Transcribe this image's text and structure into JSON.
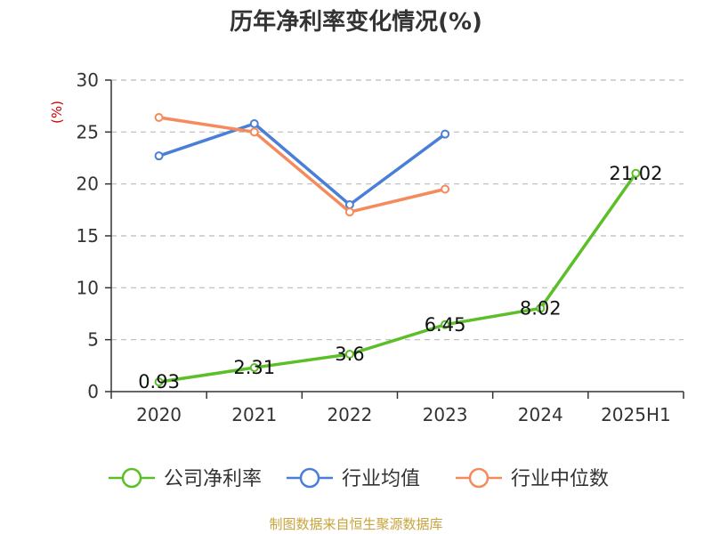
{
  "title": "历年净利率变化情况(%)",
  "source": "制图数据来自恒生聚源数据库",
  "chart_data": {
    "type": "line",
    "title": "历年净利率变化情况(%)",
    "ylabel": "(%)",
    "xlabel": "",
    "categories": [
      "2020",
      "2021",
      "2022",
      "2023",
      "2024",
      "2025H1"
    ],
    "ylim": [
      0,
      30
    ],
    "yticks": [
      0,
      5,
      10,
      15,
      20,
      25,
      30
    ],
    "grid": true,
    "legend_position": "bottom",
    "series": [
      {
        "name": "公司净利率",
        "color": "#5cbf2a",
        "values": [
          0.93,
          2.31,
          3.6,
          6.45,
          8.02,
          21.02
        ],
        "labels": [
          "0.93",
          "2.31",
          "3.6",
          "6.45",
          "8.02",
          "21.02"
        ]
      },
      {
        "name": "行业均值",
        "color": "#4a7fd8",
        "values": [
          22.7,
          25.8,
          18.0,
          24.8,
          null,
          null
        ]
      },
      {
        "name": "行业中位数",
        "color": "#f58b5c",
        "values": [
          26.4,
          25.0,
          17.3,
          19.5,
          null,
          null
        ]
      }
    ]
  }
}
